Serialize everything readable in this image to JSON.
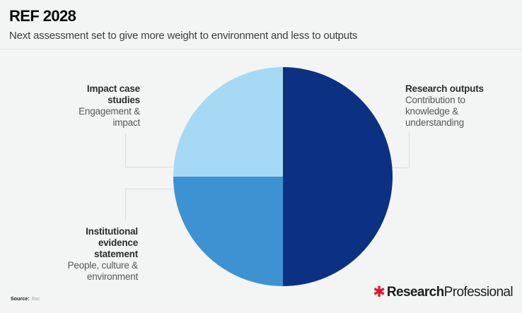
{
  "header": {
    "title": "REF 2028",
    "subtitle": "Next assessment set to give more weight to environment and less to outputs"
  },
  "chart_data": {
    "type": "pie",
    "title": "REF 2028",
    "subtitle": "Next assessment set to give more weight to environment and less to outputs",
    "unit": "percent",
    "direction": "clockwise",
    "start_angle_deg": 0,
    "legend_position": "callout-labels-around-pie",
    "slices": [
      {
        "label": "Research outputs",
        "description": "Contribution to knowledge & understanding",
        "value": 50,
        "color": "#0c3182"
      },
      {
        "label": "Institutional evidence statement",
        "description": "People, culture & environment",
        "value": 25,
        "color": "#3d93d1"
      },
      {
        "label": "Impact case studies",
        "description": "Engagement & impact",
        "value": 25,
        "color": "#a6d9f4"
      }
    ]
  },
  "footer": {
    "source_label": "Source:",
    "source_value": "Jisc"
  },
  "logo": {
    "asterisk": "✱",
    "accent_color": "#e8112d",
    "name_bold": "Research",
    "name_regular": "Professional"
  }
}
